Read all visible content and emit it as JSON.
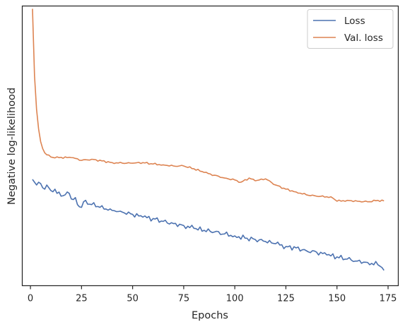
{
  "chart_data": {
    "type": "line",
    "title": "",
    "xlabel": "Epochs",
    "ylabel": "Negative log-likelihood",
    "xlim": [
      -4,
      180
    ],
    "ylim": [
      0,
      100
    ],
    "xticks": [
      0,
      25,
      50,
      75,
      100,
      125,
      150,
      175
    ],
    "yticks": [],
    "grid": false,
    "legend": "top-right",
    "series": [
      {
        "name": "Loss",
        "color": "#4c72b0",
        "anchors": [
          [
            1,
            38
          ],
          [
            2,
            37
          ],
          [
            3,
            36
          ],
          [
            4,
            37
          ],
          [
            5,
            36.5
          ],
          [
            6,
            35
          ],
          [
            7,
            34.5
          ],
          [
            8,
            36
          ],
          [
            9,
            35
          ],
          [
            10,
            34
          ],
          [
            12,
            34.5
          ],
          [
            13,
            33
          ],
          [
            15,
            32
          ],
          [
            17,
            32.5
          ],
          [
            19,
            33
          ],
          [
            20,
            31
          ],
          [
            22,
            31.5
          ],
          [
            23,
            29
          ],
          [
            25,
            28
          ],
          [
            26,
            30
          ],
          [
            30,
            29
          ],
          [
            34,
            28
          ],
          [
            38,
            27
          ],
          [
            42,
            26.5
          ],
          [
            46,
            26
          ],
          [
            50,
            25.5
          ],
          [
            55,
            24.5
          ],
          [
            60,
            24
          ],
          [
            65,
            23
          ],
          [
            70,
            22.2
          ],
          [
            75,
            21.5
          ],
          [
            80,
            20.5
          ],
          [
            85,
            19.8
          ],
          [
            90,
            19.2
          ],
          [
            95,
            18.5
          ],
          [
            100,
            17.8
          ],
          [
            105,
            17
          ],
          [
            110,
            16.5
          ],
          [
            115,
            15.8
          ],
          [
            120,
            15
          ],
          [
            125,
            14
          ],
          [
            130,
            13.5
          ],
          [
            135,
            12.5
          ],
          [
            140,
            12
          ],
          [
            145,
            11
          ],
          [
            150,
            10.3
          ],
          [
            155,
            9.5
          ],
          [
            160,
            8.8
          ],
          [
            165,
            8.3
          ],
          [
            170,
            7.5
          ],
          [
            172,
            6.5
          ],
          [
            173,
            5.5
          ]
        ]
      },
      {
        "name": "Val. loss",
        "color": "#dd8452",
        "anchors": [
          [
            1,
            99
          ],
          [
            2,
            75
          ],
          [
            3,
            63
          ],
          [
            4,
            56
          ],
          [
            5,
            51.5
          ],
          [
            6,
            49
          ],
          [
            7,
            47.5
          ],
          [
            8,
            46.8
          ],
          [
            10,
            46
          ],
          [
            12,
            45.7
          ],
          [
            15,
            45.9
          ],
          [
            18,
            45.8
          ],
          [
            20,
            45.8
          ],
          [
            22,
            45.5
          ],
          [
            25,
            44.8
          ],
          [
            30,
            45.2
          ],
          [
            35,
            44.6
          ],
          [
            40,
            44
          ],
          [
            45,
            43.8
          ],
          [
            50,
            43.8
          ],
          [
            55,
            44
          ],
          [
            60,
            43.5
          ],
          [
            65,
            43.2
          ],
          [
            70,
            42.8
          ],
          [
            75,
            42.8
          ],
          [
            80,
            41.8
          ],
          [
            85,
            40.5
          ],
          [
            90,
            39.5
          ],
          [
            95,
            38.5
          ],
          [
            100,
            37.8
          ],
          [
            103,
            37
          ],
          [
            107,
            38.5
          ],
          [
            110,
            37.5
          ],
          [
            115,
            38.2
          ],
          [
            120,
            36
          ],
          [
            125,
            34.5
          ],
          [
            130,
            33.5
          ],
          [
            135,
            32.5
          ],
          [
            140,
            32
          ],
          [
            145,
            31.8
          ],
          [
            148,
            31.3
          ],
          [
            150,
            30.2
          ],
          [
            155,
            30.5
          ],
          [
            160,
            30.2
          ],
          [
            165,
            30
          ],
          [
            170,
            30.5
          ],
          [
            173,
            30.3
          ]
        ]
      }
    ]
  }
}
